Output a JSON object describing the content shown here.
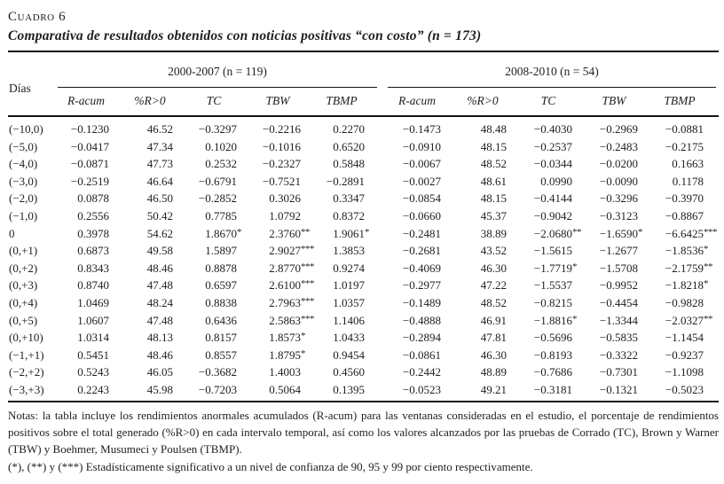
{
  "colors": {
    "background": "#ffffff",
    "text": "#1e1e1e",
    "rule": "#141414"
  },
  "caption": {
    "label": "Cuadro 6",
    "title": "Comparativa de resultados obtenidos con noticias positivas “con costo” (n = 173)"
  },
  "table": {
    "row_header": "Días",
    "groups": [
      {
        "label": "2000-2007 (n = 119)"
      },
      {
        "label": "2008-2010 (n = 54)"
      }
    ],
    "columns": [
      "R-acum",
      "%R>0",
      "TC",
      "TBW",
      "TBMP"
    ],
    "rows": [
      {
        "d": "(−10,0)",
        "c": [
          "−0.1230",
          "46.52",
          "−0.3297",
          "−0.2216",
          "0.2270",
          "−0.1473",
          "48.48",
          "−0.4030",
          "−0.2969",
          "−0.0881"
        ]
      },
      {
        "d": "(−5,0)",
        "c": [
          "−0.0417",
          "47.34",
          "0.1020",
          "−0.1016",
          "0.6520",
          "−0.0910",
          "48.15",
          "−0.2537",
          "−0.2483",
          "−0.2175"
        ]
      },
      {
        "d": "(−4,0)",
        "c": [
          "−0.0871",
          "47.73",
          "0.2532",
          "−0.2327",
          "0.5848",
          "−0.0067",
          "48.52",
          "−0.0344",
          "−0.0200",
          "0.1663"
        ]
      },
      {
        "d": "(−3,0)",
        "c": [
          "−0.2519",
          "46.64",
          "−0.6791",
          "−0.7521",
          "−0.2891",
          "−0.0027",
          "48.61",
          "0.0990",
          "−0.0090",
          "0.1178"
        ]
      },
      {
        "d": "(−2,0)",
        "c": [
          "0.0878",
          "46.50",
          "−0.2852",
          "0.3026",
          "0.3347",
          "−0.0854",
          "48.15",
          "−0.4144",
          "−0.3296",
          "−0.3970"
        ]
      },
      {
        "d": "(−1,0)",
        "c": [
          "0.2556",
          "50.42",
          "0.7785",
          "1.0792",
          "0.8372",
          "−0.0660",
          "45.37",
          "−0.9042",
          "−0.3123",
          "−0.8867"
        ]
      },
      {
        "d": "0",
        "c": [
          "0.3978",
          "54.62",
          "1.8670*",
          "2.3760**",
          "1.9061*",
          "−0.2481",
          "38.89",
          "−2.0680**",
          "−1.6590*",
          "−6.6425***"
        ]
      },
      {
        "d": "(0,+1)",
        "c": [
          "0.6873",
          "49.58",
          "1.5897",
          "2.9027***",
          "1.3853",
          "−0.2681",
          "43.52",
          "−1.5615",
          "−1.2677",
          "−1.8536*"
        ]
      },
      {
        "d": "(0,+2)",
        "c": [
          "0.8343",
          "48.46",
          "0.8878",
          "2.8770***",
          "0.9274",
          "−0.4069",
          "46.30",
          "−1.7719*",
          "−1.5708",
          "−2.1759**"
        ]
      },
      {
        "d": "(0,+3)",
        "c": [
          "0.8740",
          "47.48",
          "0.6597",
          "2.6100***",
          "1.0197",
          "−0.2977",
          "47.22",
          "−1.5537",
          "−0.9952",
          "−1.8218*"
        ]
      },
      {
        "d": "(0,+4)",
        "c": [
          "1.0469",
          "48.24",
          "0.8838",
          "2.7963***",
          "1.0357",
          "−0.1489",
          "48.52",
          "−0.8215",
          "−0.4454",
          "−0.9828"
        ]
      },
      {
        "d": "(0,+5)",
        "c": [
          "1.0607",
          "47.48",
          "0.6436",
          "2.5863***",
          "1.1406",
          "−0.4888",
          "46.91",
          "−1.8816*",
          "−1.3344",
          "−2.0327**"
        ]
      },
      {
        "d": "(0,+10)",
        "c": [
          "1.0314",
          "48.13",
          "0.8157",
          "1.8573*",
          "1.0433",
          "−0.2894",
          "47.81",
          "−0.5696",
          "−0.5835",
          "−1.1454"
        ]
      },
      {
        "d": "(−1,+1)",
        "c": [
          "0.5451",
          "48.46",
          "0.8557",
          "1.8795*",
          "0.9454",
          "−0.0861",
          "46.30",
          "−0.8193",
          "−0.3322",
          "−0.9237"
        ]
      },
      {
        "d": "(−2,+2)",
        "c": [
          "0.5243",
          "46.05",
          "−0.3682",
          "1.4003",
          "0.4560",
          "−0.2442",
          "48.89",
          "−0.7686",
          "−0.7301",
          "−1.1098"
        ]
      },
      {
        "d": "(−3,+3)",
        "c": [
          "0.2243",
          "45.98",
          "−0.7203",
          "0.5064",
          "0.1395",
          "−0.0523",
          "49.21",
          "−0.3181",
          "−0.1321",
          "−0.5023"
        ]
      }
    ]
  },
  "notes": {
    "body": "Notas: la tabla incluye los rendimientos anormales acumulados (R-acum) para las ventanas consideradas en el estudio, el porcentaje de rendimientos positivos sobre el total generado (%R>0) en cada intervalo temporal, así como los valores alcanzados por las pruebas de Corrado (TC), Brown y Warner (TBW) y Boehmer, Musumeci y Poulsen (TBMP).",
    "significance": "(*), (**) y (***) Estadísticamente significativo a un nivel de confianza de 90, 95 y 99 por ciento respectivamente."
  }
}
